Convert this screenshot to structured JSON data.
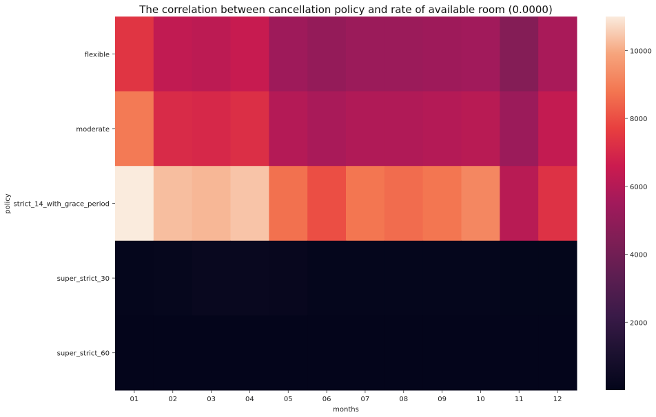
{
  "chart_data": {
    "type": "heatmap",
    "title": "The correlation between cancellation policy and rate of available room (0.0000)",
    "xlabel": "months",
    "ylabel": "policy",
    "x": [
      "01",
      "02",
      "03",
      "04",
      "05",
      "06",
      "07",
      "08",
      "09",
      "10",
      "11",
      "12"
    ],
    "y": [
      "flexible",
      "moderate",
      "strict_14_with_grace_period",
      "super_strict_30",
      "super_strict_60"
    ],
    "values": [
      [
        7400,
        6350,
        6200,
        6500,
        5400,
        5100,
        5300,
        5300,
        5400,
        5500,
        4600,
        5700
      ],
      [
        8900,
        7100,
        7000,
        7200,
        6000,
        5700,
        5900,
        5900,
        6000,
        6100,
        5300,
        6400
      ],
      [
        11000,
        10300,
        10200,
        10400,
        8700,
        8000,
        8800,
        8600,
        8800,
        9200,
        6100,
        7300
      ],
      [
        100,
        150,
        250,
        250,
        200,
        80,
        80,
        80,
        80,
        80,
        60,
        60
      ],
      [
        40,
        40,
        40,
        40,
        40,
        40,
        40,
        40,
        40,
        40,
        40,
        40
      ]
    ],
    "colorbar": {
      "min": 0,
      "max": 11000,
      "ticks": [
        2000,
        4000,
        6000,
        8000,
        10000
      ],
      "colormap": "rocket"
    }
  }
}
